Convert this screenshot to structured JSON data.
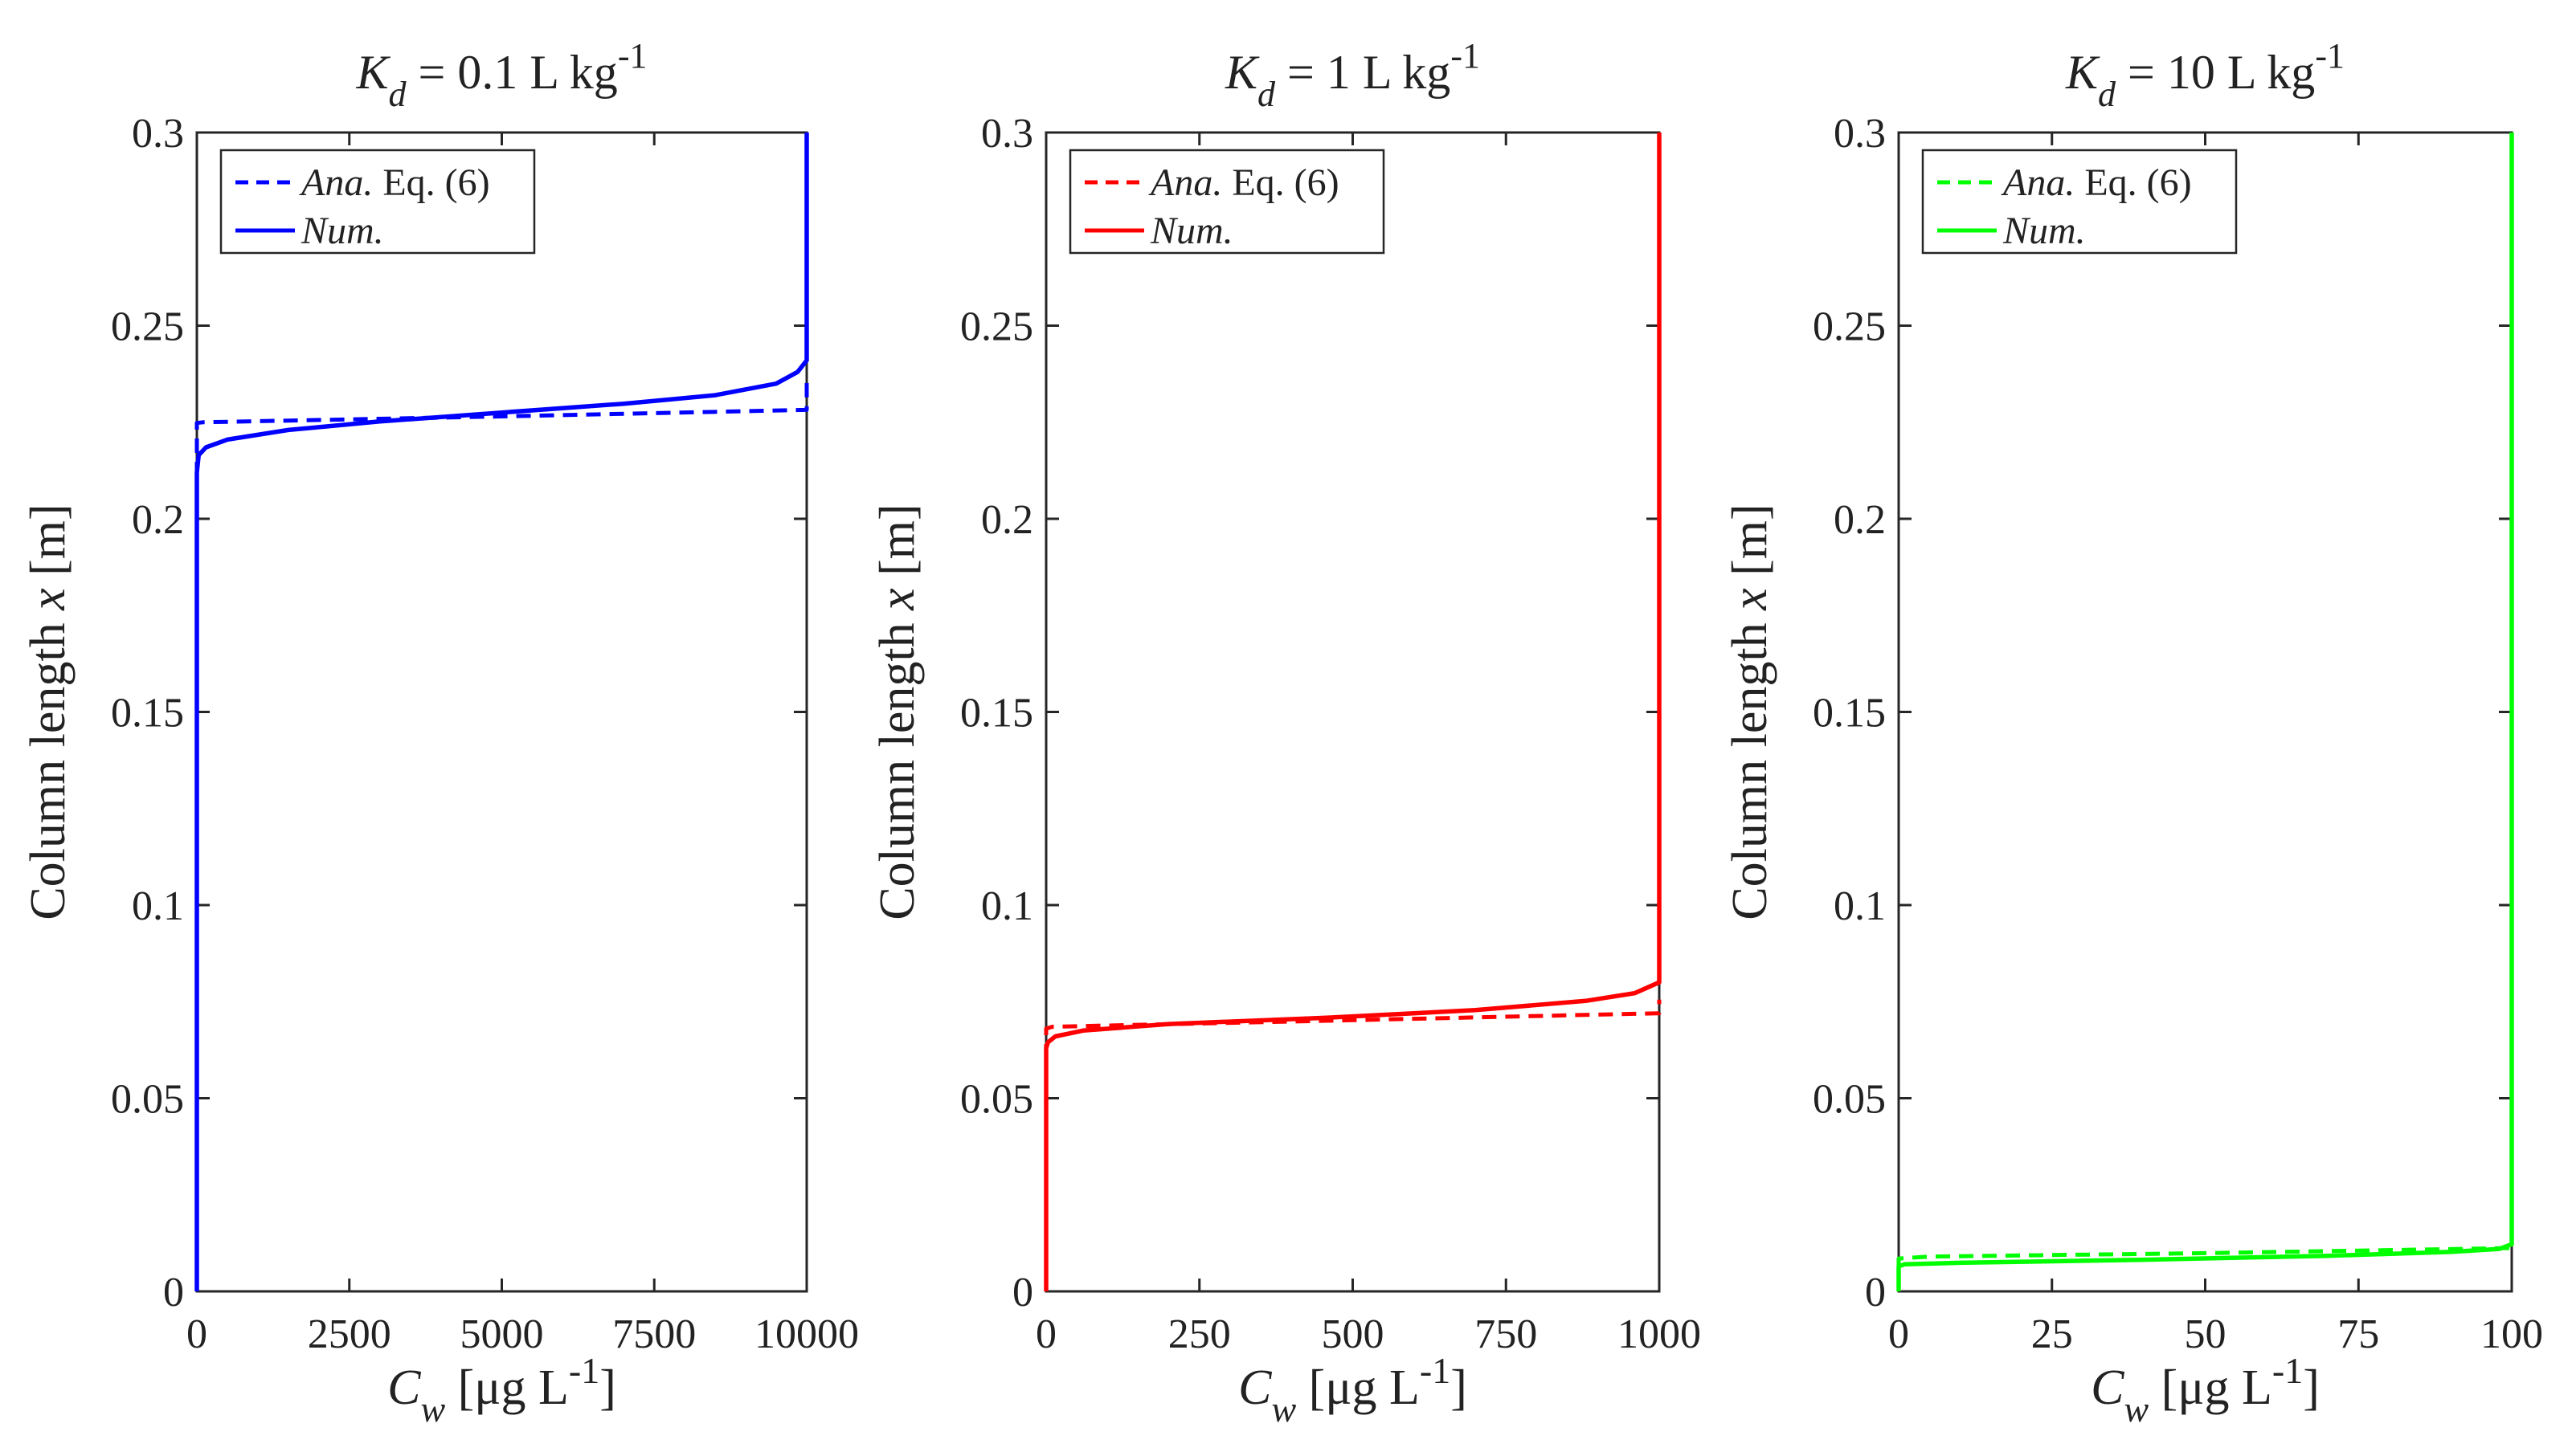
{
  "colors": {
    "panel1": "#0000ff",
    "panel2": "#ff0000",
    "panel3": "#00ff00",
    "axis": "#262626"
  },
  "chart_data": [
    {
      "type": "line",
      "title": {
        "symbol": "K",
        "subscript": "d",
        "text": " = 0.1 L kg",
        "superscript": "-1"
      },
      "xlabel": {
        "symbol": "C",
        "subscript": "w",
        "text": " [μg L",
        "superscript": "-1",
        "close": "]"
      },
      "ylabel": {
        "text": "Column length ",
        "var": "x",
        "unit": " [m]"
      },
      "xlim": [
        0,
        10000
      ],
      "ylim": [
        0,
        0.3
      ],
      "xticks": [
        0,
        2500,
        5000,
        7500,
        10000
      ],
      "xtick_labels": [
        "0",
        "2500",
        "5000",
        "7500",
        "10000"
      ],
      "yticks": [
        0,
        0.05,
        0.1,
        0.15,
        0.2,
        0.25,
        0.3
      ],
      "ytick_labels": [
        "0",
        "0.05",
        "0.1",
        "0.15",
        "0.2",
        "0.25",
        "0.3"
      ],
      "legend": [
        {
          "italic": "Ana.",
          "text": " Eq. (6)",
          "style": "dashed"
        },
        {
          "italic": "Num.",
          "text": "",
          "style": "solid"
        }
      ],
      "series": [
        {
          "name": "Ana. Eq. (6)",
          "style": "dashed",
          "points": [
            [
              0,
              0
            ],
            [
              0,
              0.2248
            ],
            [
              100,
              0.225
            ],
            [
              5000,
              0.2265
            ],
            [
              9990,
              0.2282
            ],
            [
              10000,
              0.2282
            ],
            [
              10000,
              0.236
            ]
          ]
        },
        {
          "name": "Num.",
          "style": "solid",
          "points": [
            [
              0,
              0
            ],
            [
              0,
              0.212
            ],
            [
              30,
              0.2165
            ],
            [
              150,
              0.2185
            ],
            [
              500,
              0.2205
            ],
            [
              1500,
              0.223
            ],
            [
              3000,
              0.2252
            ],
            [
              5000,
              0.2275
            ],
            [
              7000,
              0.2298
            ],
            [
              8500,
              0.232
            ],
            [
              9500,
              0.235
            ],
            [
              9850,
              0.238
            ],
            [
              10000,
              0.241
            ],
            [
              10000,
              0.3
            ]
          ]
        }
      ]
    },
    {
      "type": "line",
      "title": {
        "symbol": "K",
        "subscript": "d",
        "text": " = 1 L kg",
        "superscript": "-1"
      },
      "xlabel": {
        "symbol": "C",
        "subscript": "w",
        "text": " [μg L",
        "superscript": "-1",
        "close": "]"
      },
      "ylabel": {
        "text": "Column length ",
        "var": "x",
        "unit": " [m]"
      },
      "xlim": [
        0,
        1000
      ],
      "ylim": [
        0,
        0.3
      ],
      "xticks": [
        0,
        250,
        500,
        750,
        1000
      ],
      "xtick_labels": [
        "0",
        "250",
        "500",
        "750",
        "1000"
      ],
      "yticks": [
        0,
        0.05,
        0.1,
        0.15,
        0.2,
        0.25,
        0.3
      ],
      "ytick_labels": [
        "0",
        "0.05",
        "0.1",
        "0.15",
        "0.2",
        "0.25",
        "0.3"
      ],
      "legend": [
        {
          "italic": "Ana.",
          "text": " Eq. (6)",
          "style": "dashed"
        },
        {
          "italic": "Num.",
          "text": "",
          "style": "solid"
        }
      ],
      "series": [
        {
          "name": "Ana. Eq. (6)",
          "style": "dashed",
          "points": [
            [
              0,
              0
            ],
            [
              0,
              0.068
            ],
            [
              10,
              0.0685
            ],
            [
              500,
              0.0702
            ],
            [
              999,
              0.072
            ],
            [
              1000,
              0.072
            ],
            [
              1000,
              0.0755
            ]
          ]
        },
        {
          "name": "Num.",
          "style": "solid",
          "points": [
            [
              0,
              0
            ],
            [
              0,
              0.063
            ],
            [
              3,
              0.0645
            ],
            [
              15,
              0.066
            ],
            [
              60,
              0.0675
            ],
            [
              200,
              0.0692
            ],
            [
              450,
              0.0708
            ],
            [
              700,
              0.0728
            ],
            [
              880,
              0.0752
            ],
            [
              960,
              0.0772
            ],
            [
              1000,
              0.08
            ],
            [
              1000,
              0.3
            ]
          ]
        }
      ]
    },
    {
      "type": "line",
      "title": {
        "symbol": "K",
        "subscript": "d",
        "text": " = 10 L kg",
        "superscript": "-1"
      },
      "xlabel": {
        "symbol": "C",
        "subscript": "w",
        "text": " [μg L",
        "superscript": "-1",
        "close": "]"
      },
      "ylabel": {
        "text": "Column length ",
        "var": "x",
        "unit": " [m]"
      },
      "xlim": [
        0,
        100
      ],
      "ylim": [
        0,
        0.3
      ],
      "xticks": [
        0,
        25,
        50,
        75,
        100
      ],
      "xtick_labels": [
        "0",
        "25",
        "50",
        "75",
        "100"
      ],
      "yticks": [
        0,
        0.05,
        0.1,
        0.15,
        0.2,
        0.25,
        0.3
      ],
      "ytick_labels": [
        "0",
        "0.05",
        "0.1",
        "0.15",
        "0.2",
        "0.25",
        "0.3"
      ],
      "legend": [
        {
          "italic": "Ana.",
          "text": " Eq. (6)",
          "style": "dashed"
        },
        {
          "italic": "Num.",
          "text": "",
          "style": "solid"
        }
      ],
      "series": [
        {
          "name": "Ana. Eq. (6)",
          "style": "dashed",
          "points": [
            [
              0,
              0
            ],
            [
              0,
              0.0085
            ],
            [
              5,
              0.009
            ],
            [
              50,
              0.0099
            ],
            [
              99.9,
              0.0112
            ],
            [
              100,
              0.0112
            ],
            [
              100,
              0.0135
            ]
          ]
        },
        {
          "name": "Num.",
          "style": "solid",
          "points": [
            [
              0,
              0
            ],
            [
              0,
              0.0065
            ],
            [
              1,
              0.007
            ],
            [
              10,
              0.0074
            ],
            [
              40,
              0.0082
            ],
            [
              70,
              0.0092
            ],
            [
              90,
              0.0102
            ],
            [
              98,
              0.011
            ],
            [
              100,
              0.0122
            ],
            [
              100,
              0.3
            ]
          ]
        }
      ]
    }
  ]
}
